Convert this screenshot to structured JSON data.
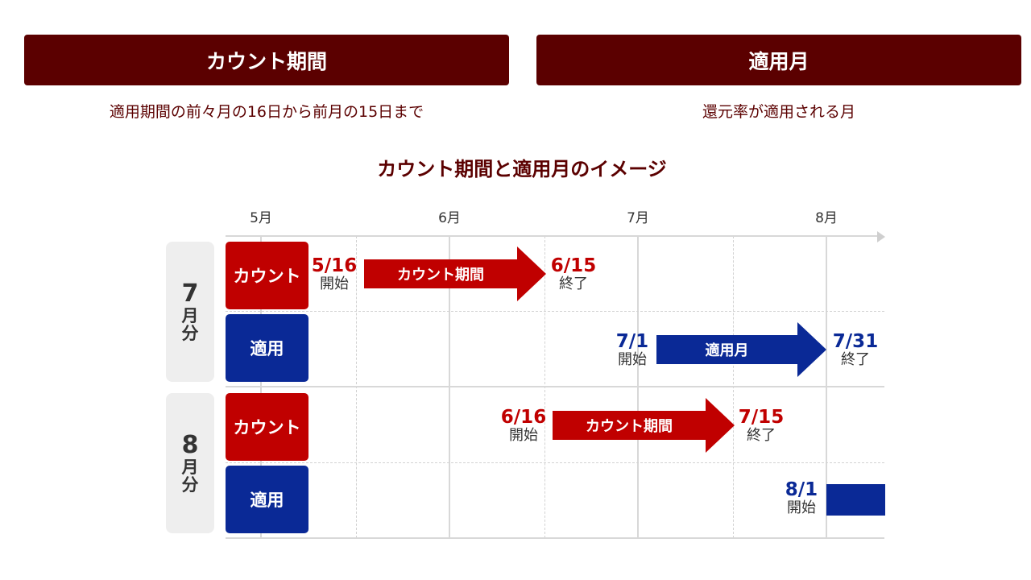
{
  "banners": [
    {
      "title": "カウント期間",
      "description": "適用期間の前々月の16日から前月の15日まで"
    },
    {
      "title": "適用月",
      "description": "還元率が適用される月"
    }
  ],
  "diagram_title": "カウント期間と適用月のイメージ",
  "months": [
    "5月",
    "6月",
    "7月",
    "8月"
  ],
  "groups": [
    {
      "number": "7",
      "unit_top": "月",
      "unit_bottom": "分"
    },
    {
      "number": "8",
      "unit_top": "月",
      "unit_bottom": "分"
    }
  ],
  "row_labels": {
    "count": "カウント",
    "apply": "適用"
  },
  "rows": {
    "july_count": {
      "start": "5/16",
      "start_label": "開始",
      "arrow": "カウント期間",
      "end": "6/15",
      "end_label": "終了"
    },
    "july_apply": {
      "start": "7/1",
      "start_label": "開始",
      "arrow": "適用月",
      "end": "7/31",
      "end_label": "終了"
    },
    "aug_count": {
      "start": "6/16",
      "start_label": "開始",
      "arrow": "カウント期間",
      "end": "7/15",
      "end_label": "終了"
    },
    "aug_apply": {
      "start": "8/1",
      "start_label": "開始"
    }
  },
  "colors": {
    "banner": "#5b0000",
    "count": "#c00000",
    "apply": "#0a2996",
    "group_bg": "#eeeeee"
  }
}
